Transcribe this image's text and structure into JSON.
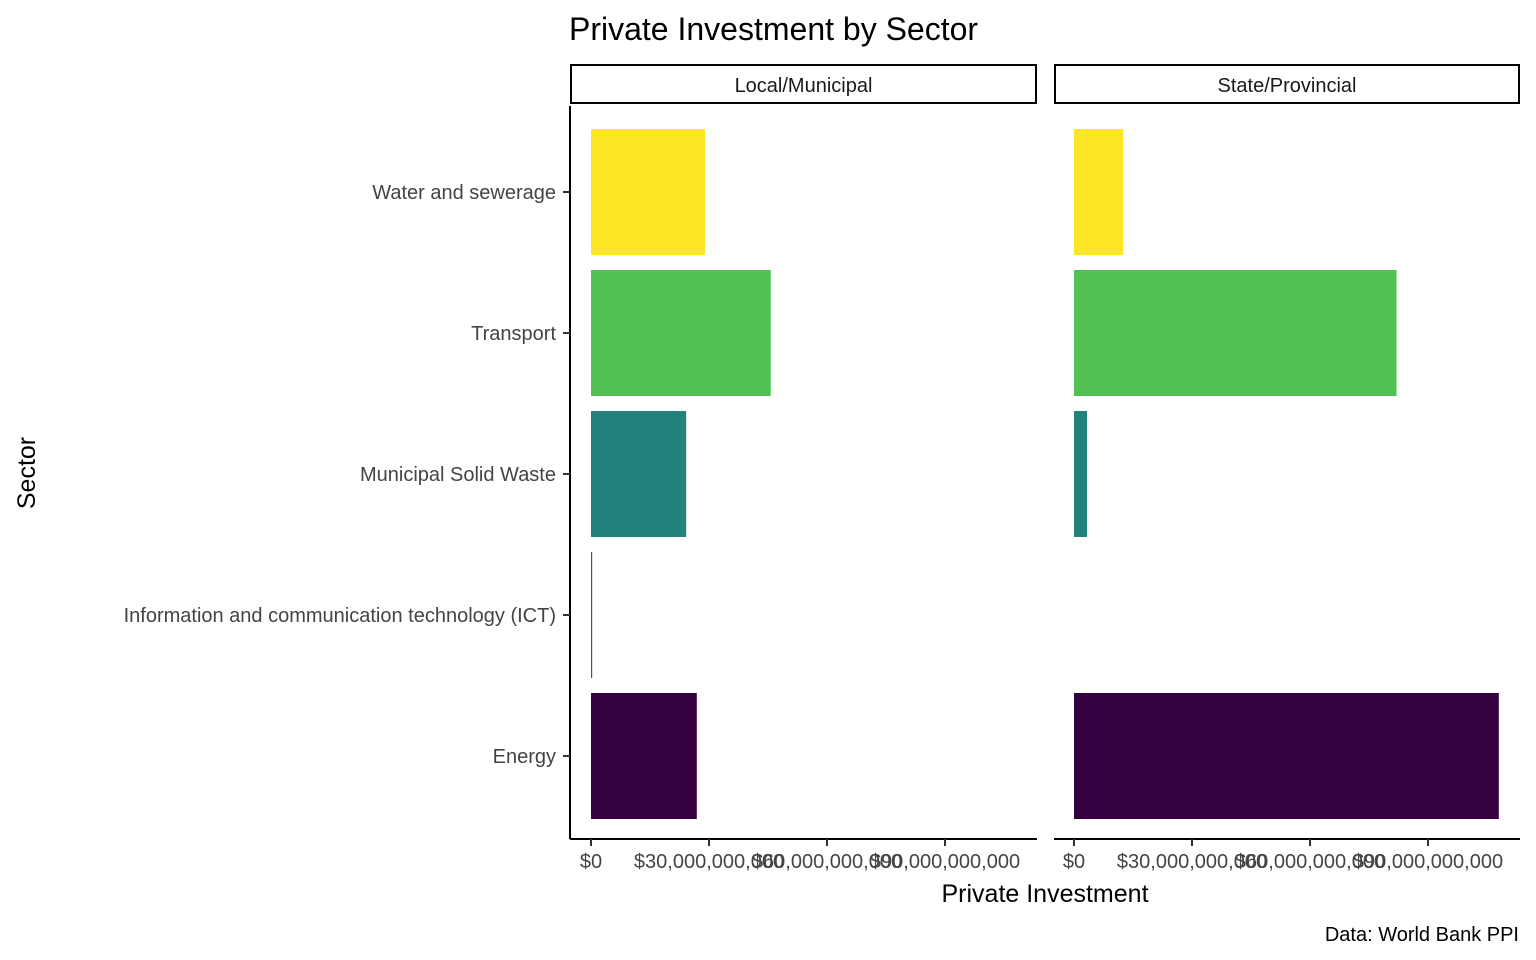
{
  "chart_data": {
    "type": "bar",
    "orientation": "horizontal",
    "title": "Private Investment by Sector",
    "xlabel": "Private Investment",
    "ylabel": "Sector",
    "caption": "Data: World Bank PPI",
    "categories": [
      "Water and sewerage",
      "Transport",
      "Municipal Solid Waste",
      "Information and communication technology (ICT)",
      "Energy"
    ],
    "xlim": [
      0,
      115000000000
    ],
    "xticks": [
      0,
      30000000000,
      60000000000,
      90000000000
    ],
    "xtick_labels": [
      "$0",
      "$30,000,000,000",
      "$60,000,000,000",
      "$90,000,000,000"
    ],
    "grid": false,
    "legend": "none",
    "colors": {
      "Water and sewerage": "#fde725",
      "Transport": "#51c252",
      "Municipal Solid Waste": "#21837c",
      "Information and communication technology (ICT)": "#3b528b",
      "Energy": "#35003f"
    },
    "panels": [
      {
        "name": "Local/Municipal",
        "values": [
          29000000000,
          45700000000,
          24200000000,
          300000000,
          26900000000
        ]
      },
      {
        "name": "State/Provincial",
        "values": [
          12500000000,
          82000000000,
          3300000000,
          0,
          108000000000
        ]
      }
    ]
  }
}
